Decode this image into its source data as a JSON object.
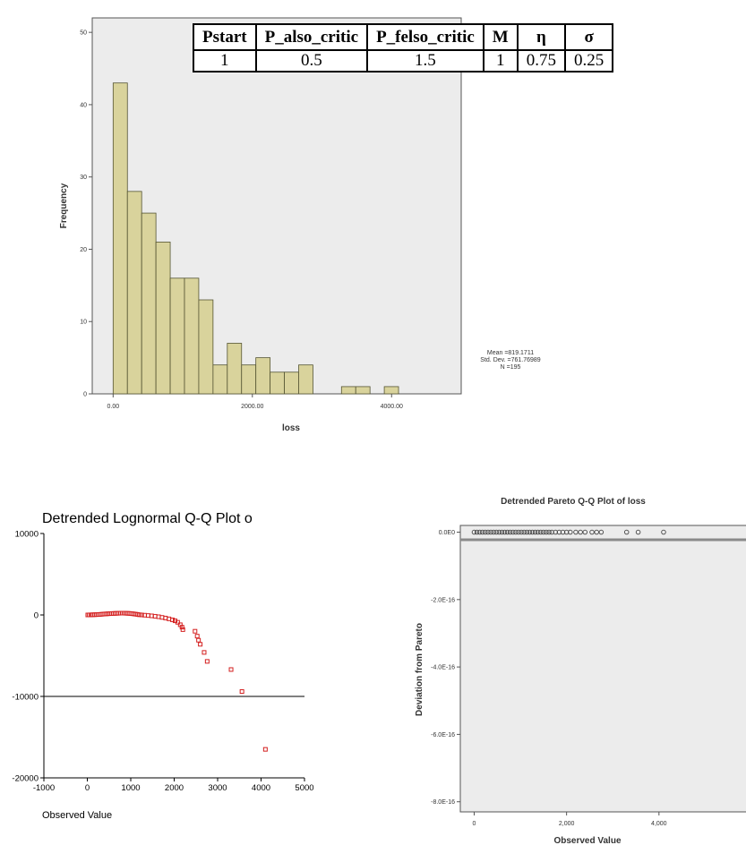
{
  "param_table": {
    "headers": [
      "Pstart",
      "P_also_critic",
      "P_felso_critic",
      "M",
      "η",
      "σ"
    ],
    "values": [
      "1",
      "0.5",
      "1.5",
      "1",
      "0.75",
      "0.25"
    ]
  },
  "chart_data": [
    {
      "type": "bar",
      "title": "",
      "xlabel": "loss",
      "ylabel": "Frequency",
      "xlim": [
        -300,
        5000
      ],
      "ylim": [
        0,
        52
      ],
      "xticks": [
        "0.00",
        "2000.00",
        "4000.00"
      ],
      "yticks": [
        "0",
        "10",
        "20",
        "30",
        "40",
        "50"
      ],
      "bin_width": 205,
      "bin_starts": [
        0,
        205,
        410,
        615,
        820,
        1025,
        1230,
        1435,
        1640,
        1845,
        2050,
        2255,
        2460,
        2665,
        2870,
        3075,
        3280,
        3485,
        3690,
        3895
      ],
      "values": [
        43,
        28,
        25,
        21,
        16,
        16,
        13,
        4,
        7,
        4,
        5,
        3,
        3,
        4,
        0,
        0,
        1,
        1,
        0,
        1
      ],
      "stats": {
        "mean": "Mean =819.1711",
        "sd": "Std. Dev. =761.76989",
        "n": "N =195"
      },
      "colors": {
        "bar": "#d9d39c",
        "bar_edge": "#555533",
        "panel": "#ececec"
      }
    },
    {
      "type": "scatter",
      "title": "Detrended Lognormal Q-Q Plot o",
      "xlabel": "Observed Value",
      "ylabel": "",
      "xlim": [
        -1000,
        5000
      ],
      "ylim": [
        -20000,
        10000
      ],
      "xticks": [
        "-1000",
        "0",
        "1000",
        "2000",
        "3000",
        "4000",
        "5000"
      ],
      "yticks": [
        "10000",
        "0",
        "-10000",
        "-20000"
      ],
      "points": [
        [
          10,
          0
        ],
        [
          40,
          5
        ],
        [
          80,
          10
        ],
        [
          120,
          20
        ],
        [
          160,
          30
        ],
        [
          200,
          40
        ],
        [
          240,
          50
        ],
        [
          280,
          60
        ],
        [
          320,
          80
        ],
        [
          360,
          100
        ],
        [
          400,
          120
        ],
        [
          440,
          130
        ],
        [
          480,
          150
        ],
        [
          520,
          160
        ],
        [
          560,
          170
        ],
        [
          600,
          180
        ],
        [
          640,
          190
        ],
        [
          680,
          200
        ],
        [
          720,
          210
        ],
        [
          760,
          220
        ],
        [
          800,
          220
        ],
        [
          840,
          220
        ],
        [
          880,
          210
        ],
        [
          920,
          200
        ],
        [
          960,
          190
        ],
        [
          1000,
          170
        ],
        [
          1040,
          150
        ],
        [
          1080,
          120
        ],
        [
          1120,
          90
        ],
        [
          1160,
          60
        ],
        [
          1200,
          20
        ],
        [
          1250,
          0
        ],
        [
          1320,
          -30
        ],
        [
          1400,
          -70
        ],
        [
          1480,
          -110
        ],
        [
          1560,
          -160
        ],
        [
          1640,
          -220
        ],
        [
          1720,
          -300
        ],
        [
          1800,
          -380
        ],
        [
          1880,
          -480
        ],
        [
          1960,
          -600
        ],
        [
          2020,
          -720
        ],
        [
          2080,
          -900
        ],
        [
          2140,
          -1200
        ],
        [
          2180,
          -1500
        ],
        [
          2200,
          -1800
        ],
        [
          2480,
          -2000
        ],
        [
          2530,
          -2600
        ],
        [
          2560,
          -3100
        ],
        [
          2600,
          -3600
        ],
        [
          2690,
          -4600
        ],
        [
          2760,
          -5700
        ],
        [
          3310,
          -6700
        ],
        [
          3560,
          -9400
        ],
        [
          4100,
          -16500
        ]
      ],
      "colors": {
        "point": "#d42020",
        "axis": "#000000"
      }
    },
    {
      "type": "scatter",
      "title": "Detrended Pareto Q-Q Plot of loss",
      "xlabel": "Observed Value",
      "ylabel": "Deviation from Pareto",
      "xlim": [
        -300,
        6000
      ],
      "ylim": [
        -8.3e-16,
        2e-17
      ],
      "xticks": [
        "0",
        "2,000",
        "4,000"
      ],
      "yticks": [
        "0.0E0",
        "-2.0E-16",
        "-4.0E-16",
        "-6.0E-16",
        "-8.0E-16"
      ],
      "points": [
        [
          0,
          0
        ],
        [
          60,
          0
        ],
        [
          120,
          0
        ],
        [
          180,
          0
        ],
        [
          240,
          0
        ],
        [
          300,
          0
        ],
        [
          360,
          0
        ],
        [
          420,
          0
        ],
        [
          480,
          0
        ],
        [
          540,
          0
        ],
        [
          600,
          0
        ],
        [
          660,
          0
        ],
        [
          720,
          0
        ],
        [
          780,
          0
        ],
        [
          840,
          0
        ],
        [
          900,
          0
        ],
        [
          960,
          0
        ],
        [
          1020,
          0
        ],
        [
          1080,
          0
        ],
        [
          1140,
          0
        ],
        [
          1200,
          0
        ],
        [
          1260,
          0
        ],
        [
          1320,
          0
        ],
        [
          1380,
          0
        ],
        [
          1440,
          0
        ],
        [
          1500,
          0
        ],
        [
          1560,
          0
        ],
        [
          1620,
          0
        ],
        [
          1680,
          0
        ],
        [
          1760,
          0
        ],
        [
          1840,
          0
        ],
        [
          1920,
          0
        ],
        [
          2000,
          0
        ],
        [
          2080,
          0
        ],
        [
          2200,
          0
        ],
        [
          2300,
          0
        ],
        [
          2400,
          0
        ],
        [
          2550,
          0
        ],
        [
          2650,
          0
        ],
        [
          2750,
          0
        ],
        [
          3300,
          0
        ],
        [
          3550,
          0
        ],
        [
          4100,
          0
        ]
      ],
      "colors": {
        "point": "#444444",
        "panel": "#ececec"
      }
    }
  ]
}
